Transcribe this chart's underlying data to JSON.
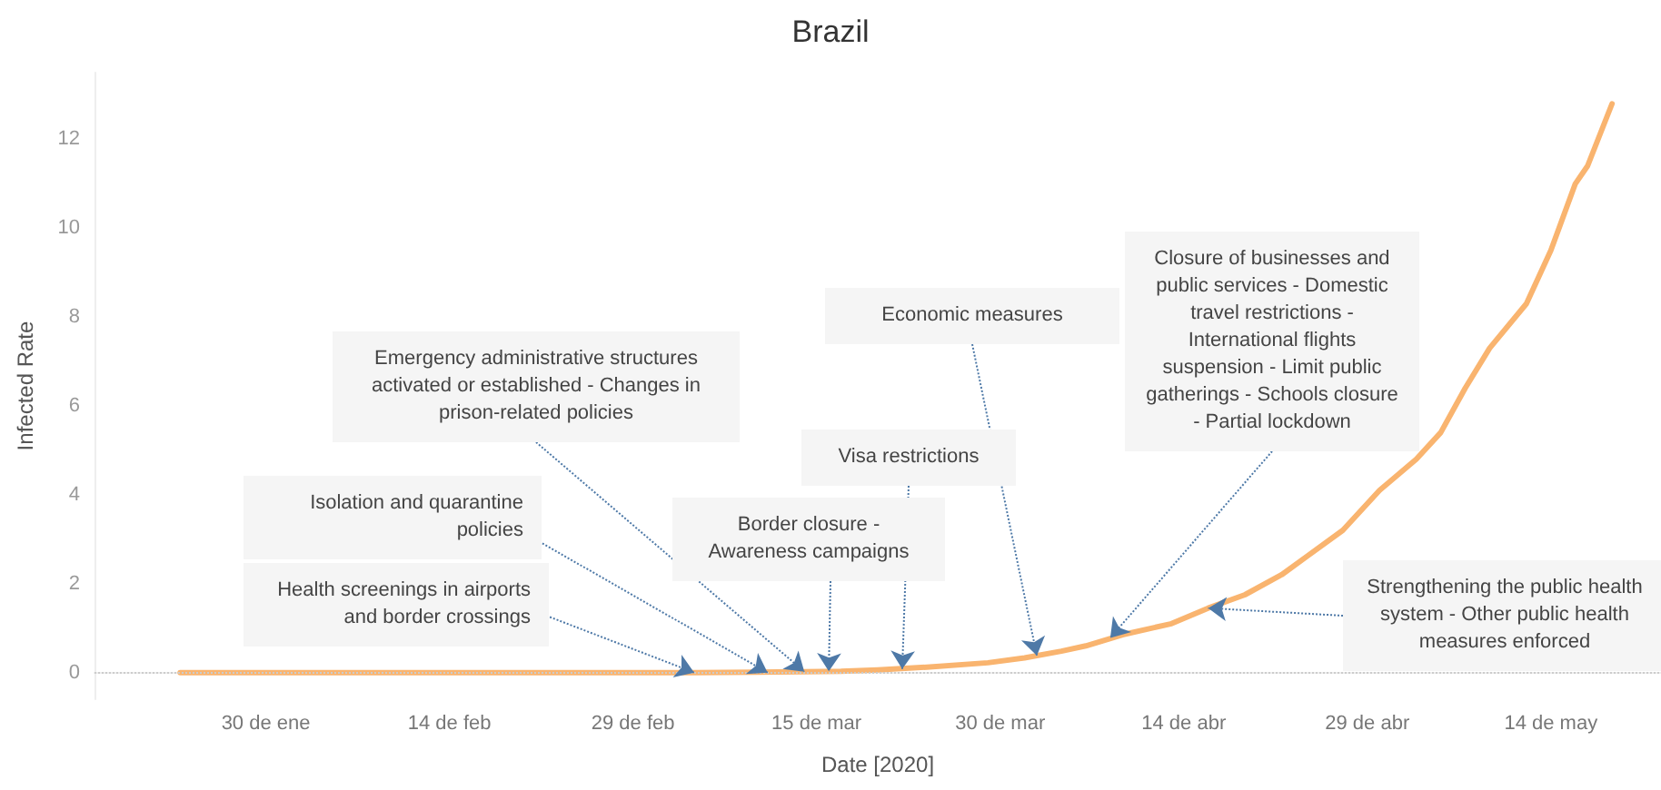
{
  "chart_data": {
    "type": "line",
    "title": "Brazil",
    "xlabel": "Date [2020]",
    "ylabel": "Infected Rate",
    "x": [
      "2020-01-23",
      "2020-02-26",
      "2020-03-05",
      "2020-03-10",
      "2020-03-14",
      "2020-03-17",
      "2020-03-20",
      "2020-03-24",
      "2020-03-29",
      "2020-04-01",
      "2020-04-04",
      "2020-04-06",
      "2020-04-09",
      "2020-04-13",
      "2020-04-16",
      "2020-04-19",
      "2020-04-22",
      "2020-04-24",
      "2020-04-27",
      "2020-04-30",
      "2020-05-03",
      "2020-05-05",
      "2020-05-07",
      "2020-05-09",
      "2020-05-12",
      "2020-05-14",
      "2020-05-16",
      "2020-05-17",
      "2020-05-19"
    ],
    "series": [
      {
        "color": "#f9b46f",
        "values": [
          0,
          0,
          0,
          0.01,
          0.02,
          0.03,
          0.06,
          0.12,
          0.22,
          0.33,
          0.48,
          0.6,
          0.85,
          1.1,
          1.45,
          1.75,
          2.2,
          2.6,
          3.2,
          4.1,
          4.8,
          5.4,
          6.4,
          7.3,
          8.3,
          9.5,
          11.0,
          11.4,
          12.8
        ]
      }
    ],
    "xlim": [
      "2020-01-16",
      "2020-05-23"
    ],
    "xticks": [
      {
        "value": "2020-01-30",
        "label": "30 de ene"
      },
      {
        "value": "2020-02-14",
        "label": "14 de feb"
      },
      {
        "value": "2020-02-29",
        "label": "29 de feb"
      },
      {
        "value": "2020-03-15",
        "label": "15 de mar"
      },
      {
        "value": "2020-03-30",
        "label": "30 de mar"
      },
      {
        "value": "2020-04-14",
        "label": "14 de abr"
      },
      {
        "value": "2020-04-29",
        "label": "29 de abr"
      },
      {
        "value": "2020-05-14",
        "label": "14 de may"
      }
    ],
    "ylim": [
      -0.6,
      13.5
    ],
    "yticks": [
      0,
      2,
      4,
      6,
      8,
      10,
      12
    ],
    "grid": false,
    "marker": "none",
    "line_style": "solid",
    "ref_lines": [
      {
        "axis": "y",
        "value": 0,
        "line_style": "dotted",
        "color": "#cccccc"
      }
    ],
    "annotations": [
      {
        "text": "Health screenings in airports and border crossings",
        "x": "2020-03-05",
        "y": 0
      },
      {
        "text": "Isolation and quarantine policies",
        "x": "2020-03-11",
        "y": 0
      },
      {
        "text": "Emergency administrative structures activated or established - Changes in prison-related policies",
        "x": "2020-03-14",
        "y": 0.02
      },
      {
        "text": "Border closure - Awareness campaigns",
        "x": "2020-03-16",
        "y": 0.03
      },
      {
        "text": "Visa restrictions",
        "x": "2020-03-22",
        "y": 0.08
      },
      {
        "text": "Economic measures",
        "x": "2020-04-02",
        "y": 0.38
      },
      {
        "text": "Closure of businesses and public services - Domestic travel restrictions - International flights suspension - Limit public gatherings - Schools closure - Partial lockdown",
        "x": "2020-04-08",
        "y": 0.78
      },
      {
        "text": "Strengthening the public health system - Other public health measures enforced",
        "x": "2020-04-16",
        "y": 1.45
      }
    ]
  }
}
